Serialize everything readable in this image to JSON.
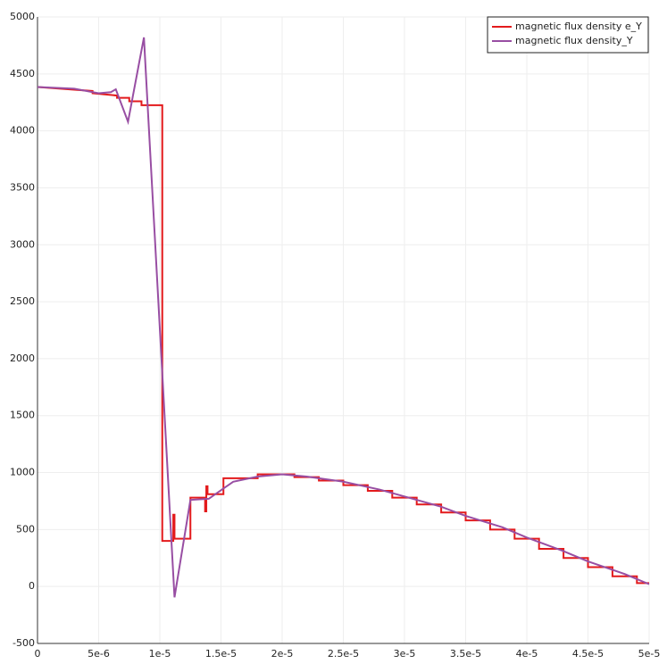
{
  "chart_data": {
    "type": "line",
    "xlim": [
      0,
      5e-05
    ],
    "ylim": [
      -500,
      5000
    ],
    "xticks": [
      0,
      {
        "value": 5e-06,
        "label": "5e-6"
      },
      {
        "value": 1e-05,
        "label": "1e-5"
      },
      {
        "value": 1.5e-05,
        "label": "1.5e-5"
      },
      {
        "value": 2e-05,
        "label": "2e-5"
      },
      {
        "value": 2.5e-05,
        "label": "2.5e-5"
      },
      {
        "value": 3e-05,
        "label": "3e-5"
      },
      {
        "value": 3.5e-05,
        "label": "3.5e-5"
      },
      {
        "value": 4e-05,
        "label": "4e-5"
      },
      {
        "value": 4.5e-05,
        "label": "4.5e-5"
      },
      {
        "value": 5e-05,
        "label": "5e-5"
      }
    ],
    "yticks": [
      -500,
      0,
      500,
      1000,
      1500,
      2000,
      2500,
      3000,
      3500,
      4000,
      4500,
      5000
    ],
    "grid": true,
    "legend": "top-right",
    "series": [
      {
        "name": "magnetic flux density e_Y",
        "color": "#e31a1c",
        "x": [
          0,
          4.5e-06,
          4.5e-06,
          6.5e-06,
          6.5e-06,
          7.5e-06,
          7.5e-06,
          8.5e-06,
          8.5e-06,
          1.02e-05,
          1.02e-05,
          1.11e-05,
          1.11e-05,
          1.12e-05,
          1.12e-05,
          1.25e-05,
          1.25e-05,
          1.37e-05,
          1.37e-05,
          1.38e-05,
          1.38e-05,
          1.39e-05,
          1.39e-05,
          1.52e-05,
          1.52e-05,
          1.8e-05,
          1.8e-05,
          2.1e-05,
          2.1e-05,
          2.3e-05,
          2.3e-05,
          2.5e-05,
          2.5e-05,
          2.7e-05,
          2.7e-05,
          2.9e-05,
          2.9e-05,
          3.1e-05,
          3.1e-05,
          3.3e-05,
          3.3e-05,
          3.5e-05,
          3.5e-05,
          3.7e-05,
          3.7e-05,
          3.9e-05,
          3.9e-05,
          4.1e-05,
          4.1e-05,
          4.3e-05,
          4.3e-05,
          4.5e-05,
          4.5e-05,
          4.7e-05,
          4.7e-05,
          4.9e-05,
          4.9e-05,
          5e-05
        ],
        "values": [
          4385,
          4350,
          4330,
          4310,
          4290,
          4290,
          4260,
          4260,
          4225,
          4225,
          400,
          400,
          630,
          630,
          420,
          420,
          780,
          780,
          660,
          660,
          880,
          880,
          810,
          810,
          950,
          950,
          985,
          985,
          960,
          960,
          930,
          930,
          890,
          890,
          840,
          840,
          780,
          780,
          720,
          720,
          650,
          650,
          580,
          580,
          500,
          500,
          420,
          420,
          330,
          330,
          250,
          250,
          170,
          170,
          90,
          90,
          30,
          30
        ]
      },
      {
        "name": "magnetic flux density_Y",
        "color": "#984ea3",
        "x": [
          0,
          3e-06,
          5e-06,
          6e-06,
          6.4e-06,
          7.4e-06,
          8.7e-06,
          1.12e-05,
          1.25e-05,
          1.4e-05,
          1.6e-05,
          1.8e-05,
          2e-05,
          2.2e-05,
          2.5e-05,
          2.8e-05,
          3e-05,
          3.3e-05,
          3.5e-05,
          3.8e-05,
          4e-05,
          4.3e-05,
          4.5e-05,
          4.8e-05,
          5e-05
        ],
        "values": [
          4385,
          4370,
          4330,
          4340,
          4365,
          4080,
          4820,
          -95,
          760,
          770,
          920,
          965,
          985,
          965,
          920,
          850,
          790,
          700,
          620,
          520,
          430,
          310,
          220,
          110,
          20
        ]
      }
    ]
  }
}
